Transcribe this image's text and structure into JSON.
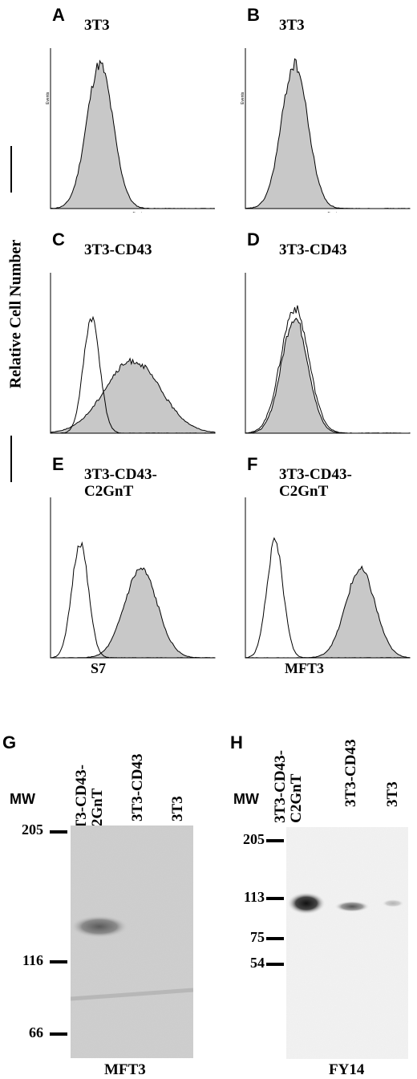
{
  "y_axis_label": "Relative Cell Number",
  "histogram_panels": [
    {
      "letter": "A",
      "title": "3T3",
      "has_open": false,
      "gray_peak": 0.3,
      "gray_width": 0.08
    },
    {
      "letter": "B",
      "title": "3T3",
      "has_open": false,
      "gray_peak": 0.3,
      "gray_width": 0.08
    },
    {
      "letter": "C",
      "title": "3T3-CD43",
      "has_open": true,
      "open_peak": 0.25,
      "gray_peak": 0.5,
      "gray_width": 0.17
    },
    {
      "letter": "D",
      "title": "3T3-CD43",
      "has_open": true,
      "open_peak": 0.3,
      "gray_peak": 0.3,
      "gray_width": 0.08
    },
    {
      "letter": "E",
      "title": "3T3-CD43-\nC2GnT",
      "has_open": true,
      "open_peak": 0.18,
      "gray_peak": 0.55,
      "gray_width": 0.1
    },
    {
      "letter": "F",
      "title": "3T3-CD43-\nC2GnT",
      "has_open": true,
      "open_peak": 0.18,
      "gray_peak": 0.7,
      "gray_width": 0.09
    }
  ],
  "x_axis_labels": {
    "left": "S7",
    "right": "MFT3"
  },
  "tiny_axis_labels": {
    "events": "Events",
    "empty": "Empty"
  },
  "blots": [
    {
      "letter": "G",
      "mw_header": "MW",
      "lanes": [
        "3T3-CD43-\nC2GnT",
        "3T3-CD43",
        "3T3"
      ],
      "markers": [
        "205",
        "116",
        "66"
      ],
      "caption": "MFT3"
    },
    {
      "letter": "H",
      "mw_header": "MW",
      "lanes": [
        "3T3-CD43-\nC2GnT",
        "3T3-CD43",
        "3T3"
      ],
      "markers": [
        "205",
        "113",
        "75",
        "54"
      ],
      "caption": "FY14"
    }
  ],
  "colors": {
    "fill": "#c8c8c8",
    "stroke": "#000000",
    "blot_bg_g": "#cfcfcf",
    "blot_bg_h": "#f3f3f3"
  }
}
